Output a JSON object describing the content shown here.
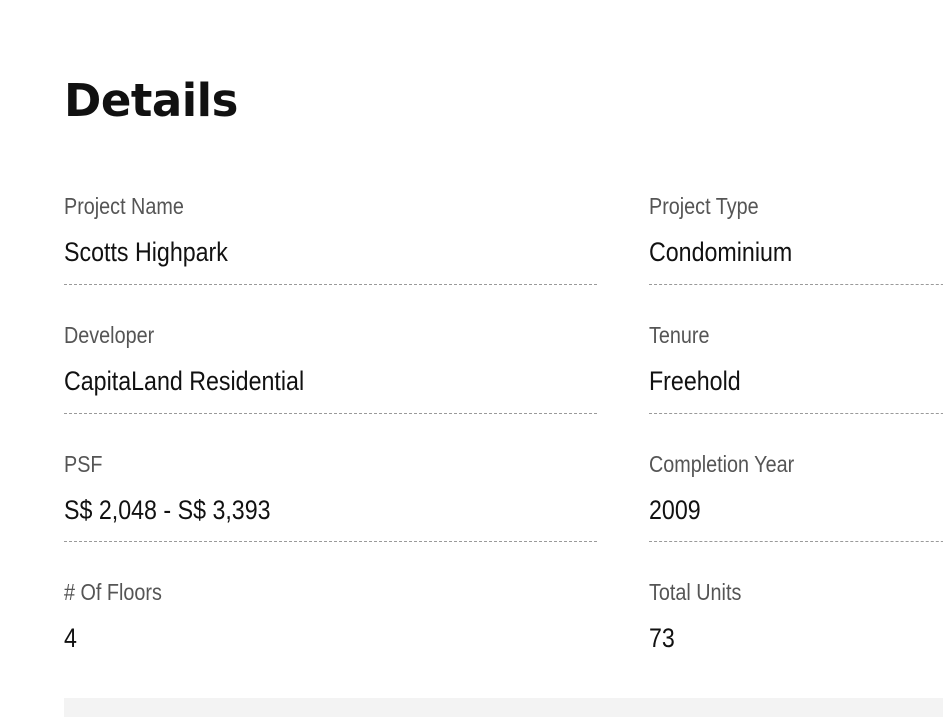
{
  "title": "Details",
  "fields": [
    {
      "label": "Project Name",
      "value": "Scotts Highpark"
    },
    {
      "label": "Project Type",
      "value": "Condominium"
    },
    {
      "label": "Developer",
      "value": "CapitaLand Residential"
    },
    {
      "label": "Tenure",
      "value": "Freehold"
    },
    {
      "label": "PSF",
      "value": "S$ 2,048 - S$ 3,393"
    },
    {
      "label": "Completion Year",
      "value": "2009"
    },
    {
      "label": "# Of Floors",
      "value": "4"
    },
    {
      "label": "Total Units",
      "value": "73"
    }
  ]
}
